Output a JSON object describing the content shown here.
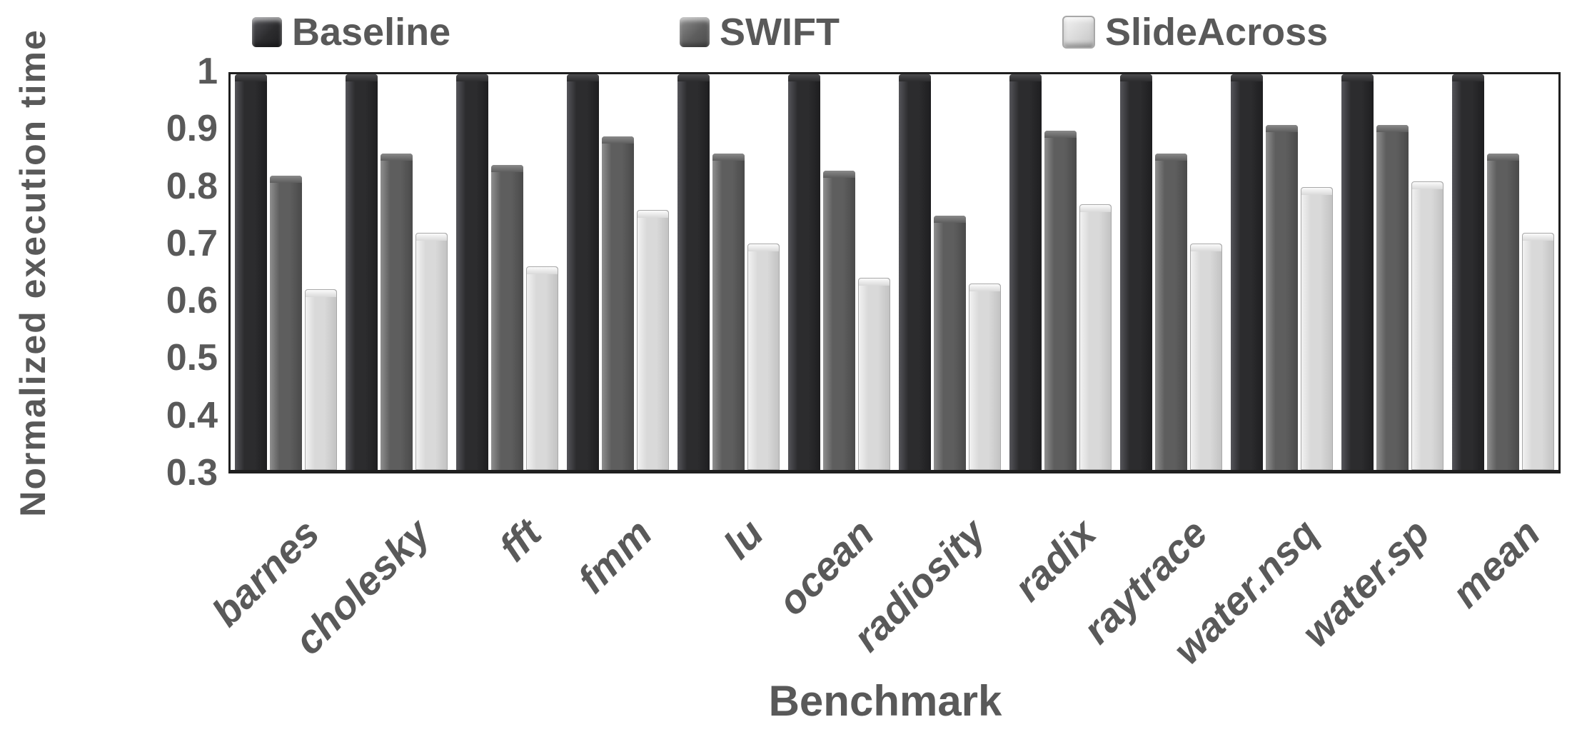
{
  "chart_data": {
    "type": "bar",
    "title": "",
    "xlabel": "Benchmark",
    "ylabel": "Normalized execution time",
    "ylim": [
      0.3,
      1.0
    ],
    "ytick_labels": [
      "1",
      "0.9",
      "0.8",
      "0.7",
      "0.6",
      "0.5",
      "0.4",
      "0.3"
    ],
    "grid": false,
    "legend_position": "top",
    "categories": [
      "barnes",
      "cholesky",
      "fft",
      "fmm",
      "lu",
      "ocean",
      "radiosity",
      "radix",
      "raytrace",
      "water.nsq",
      "water.sp",
      "mean"
    ],
    "series": [
      {
        "name": "Baseline",
        "values": [
          1.0,
          1.0,
          1.0,
          1.0,
          1.0,
          1.0,
          1.0,
          1.0,
          1.0,
          1.0,
          1.0,
          1.0
        ],
        "colors": {
          "light": "#55555a",
          "face": "#2c2c2e",
          "dark": "#1e1e20",
          "cap": "#4c4c4e",
          "stroke": ""
        }
      },
      {
        "name": "SWIFT",
        "values": [
          0.82,
          0.86,
          0.84,
          0.89,
          0.86,
          0.83,
          0.75,
          0.9,
          0.86,
          0.91,
          0.91,
          0.86
        ],
        "colors": {
          "light": "#8f8f8f",
          "face": "#5e5e5e",
          "dark": "#4a4a4a",
          "cap": "#8a8a8a",
          "stroke": ""
        }
      },
      {
        "name": "SlideAcross",
        "values": [
          0.62,
          0.72,
          0.66,
          0.76,
          0.7,
          0.64,
          0.63,
          0.77,
          0.7,
          0.8,
          0.81,
          0.72
        ],
        "colors": {
          "light": "#f2f2f2",
          "face": "#d9d9d9",
          "dark": "#c3c3c3",
          "cap": "#fbfbfb",
          "stroke": "#a8a8a8"
        }
      }
    ],
    "colors": {
      "text": "#595959",
      "axis": "#1f1f1f",
      "background": "#ffffff"
    }
  }
}
